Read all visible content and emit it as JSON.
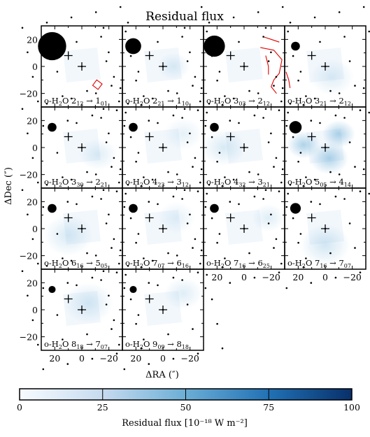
{
  "chart_data": {
    "type": "heatmap",
    "title": "Residual flux",
    "xlabel": "ΔRA (″)",
    "ylabel": "ΔDec (″)",
    "xlim": [
      30,
      -30
    ],
    "ylim": [
      -30,
      30
    ],
    "xticks": [
      20,
      0,
      -20
    ],
    "yticks": [
      20,
      0,
      -20
    ],
    "colorbar": {
      "label": "Residual flux [10⁻¹⁸ W m⁻²]",
      "range": [
        0,
        100
      ],
      "ticks": [
        0,
        25,
        50,
        75,
        100
      ],
      "colormap": [
        "#f7fbff",
        "#c6dbef",
        "#6baed6",
        "#2171b5",
        "#08306b"
      ]
    },
    "panels": [
      {
        "species": "o-H",
        "sub": "2",
        "mid": "O 2",
        "up1": "12",
        "dn1": "",
        "arrow": " → 1",
        "up2": "01",
        "beam": 16,
        "blobs": [],
        "contours": [
          {
            "pts": [
              [
                -8,
                -14
              ],
              [
                -12,
                -17
              ],
              [
                -15,
                -13
              ],
              [
                -11,
                -10
              ]
            ],
            "closed": true
          }
        ]
      },
      {
        "species": "o-H",
        "sub": "2",
        "mid": "O 2",
        "up1": "21",
        "dn1": "",
        "arrow": " → 1",
        "up2": "10",
        "beam": 9,
        "blobs": [
          [
            -8,
            0,
            6,
            10
          ]
        ],
        "contours": []
      },
      {
        "species": "o-H",
        "sub": "2",
        "mid": "O 3",
        "up1": "03",
        "dn1": "",
        "arrow": " → 2",
        "up2": "12",
        "beam": 12,
        "blobs": [],
        "contours": [
          {
            "pts": [
              [
                -14,
                22
              ],
              [
                -20,
                20
              ],
              [
                -26,
                18
              ]
            ],
            "closed": false
          },
          {
            "pts": [
              [
                -12,
                14
              ],
              [
                -22,
                12
              ],
              [
                -28,
                5
              ],
              [
                -26,
                -5
              ],
              [
                -22,
                -10
              ],
              [
                -20,
                -15
              ],
              [
                -24,
                -20
              ]
            ],
            "closed": false
          },
          {
            "pts": [
              [
                -16,
                8
              ],
              [
                -18,
                0
              ],
              [
                -18,
                -6
              ]
            ],
            "closed": false
          },
          {
            "pts": [
              [
                -31,
                -4
              ],
              [
                -33,
                -10
              ],
              [
                -34,
                -16
              ]
            ],
            "closed": false
          }
        ]
      },
      {
        "species": "o-H",
        "sub": "2",
        "mid": "O 3",
        "up1": "21",
        "dn1": "",
        "arrow": " → 2",
        "up2": "12",
        "beam": 5,
        "blobs": [
          [
            -5,
            -8,
            8,
            10
          ]
        ],
        "contours": []
      },
      {
        "species": "o-H",
        "sub": "2",
        "mid": "O 3",
        "up1": "30",
        "dn1": "",
        "arrow": " → 2",
        "up2": "21",
        "beam": 5,
        "blobs": [
          [
            -12,
            -5,
            7,
            10
          ]
        ],
        "contours": []
      },
      {
        "species": "o-H",
        "sub": "2",
        "mid": "O 4",
        "up1": "23",
        "dn1": "",
        "arrow": " → 3",
        "up2": "12",
        "beam": 5,
        "blobs": [
          [
            -15,
            10,
            7,
            8
          ]
        ],
        "contours": []
      },
      {
        "species": "o-H",
        "sub": "2",
        "mid": "O 4",
        "up1": "32",
        "dn1": "",
        "arrow": " → 3",
        "up2": "21",
        "beam": 5,
        "blobs": [
          [
            15,
            0,
            8,
            12
          ]
        ],
        "contours": []
      },
      {
        "species": "o-H",
        "sub": "2",
        "mid": "O 5",
        "up1": "05",
        "dn1": "",
        "arrow": " → 4",
        "up2": "14",
        "beam": 7,
        "blobs": [
          [
            16,
            2,
            6,
            28
          ],
          [
            -10,
            10,
            6,
            28
          ],
          [
            -3,
            -8,
            7,
            30
          ]
        ],
        "contours": []
      },
      {
        "species": "o-H",
        "sub": "2",
        "mid": "O 6",
        "up1": "16",
        "dn1": "",
        "arrow": " → 5",
        "up2": "05",
        "beam": 5,
        "blobs": [
          [
            10,
            -5,
            9,
            12
          ]
        ],
        "contours": []
      },
      {
        "species": "o-H",
        "sub": "2",
        "mid": "O 7",
        "up1": "07",
        "dn1": "",
        "arrow": " → 6",
        "up2": "16",
        "beam": 5,
        "blobs": [
          [
            -10,
            8,
            7,
            8
          ]
        ],
        "contours": []
      },
      {
        "species": "o-H",
        "sub": "2",
        "mid": "O 7",
        "up1": "16",
        "dn1": "",
        "arrow": " → 6",
        "up2": "25",
        "beam": 5,
        "blobs": [
          [
            -18,
            8,
            6,
            10
          ]
        ],
        "contours": []
      },
      {
        "species": "o-H",
        "sub": "2",
        "mid": "O 7",
        "up1": "16",
        "dn1": "",
        "arrow": " → 7",
        "up2": "07",
        "beam": 6,
        "blobs": [
          [
            0,
            -12,
            9,
            14
          ]
        ],
        "contours": []
      },
      {
        "species": "o-H",
        "sub": "2",
        "mid": "O 8",
        "up1": "18",
        "dn1": "",
        "arrow": " → 7",
        "up2": "07",
        "beam": 4,
        "blobs": [
          [
            -5,
            5,
            9,
            12
          ]
        ],
        "contours": []
      },
      {
        "species": "o-H",
        "sub": "2",
        "mid": "O 9",
        "up1": "09",
        "dn1": "",
        "arrow": " → 8",
        "up2": "18",
        "beam": 4,
        "blobs": [
          [
            -15,
            12,
            7,
            10
          ]
        ],
        "contours": []
      }
    ]
  }
}
